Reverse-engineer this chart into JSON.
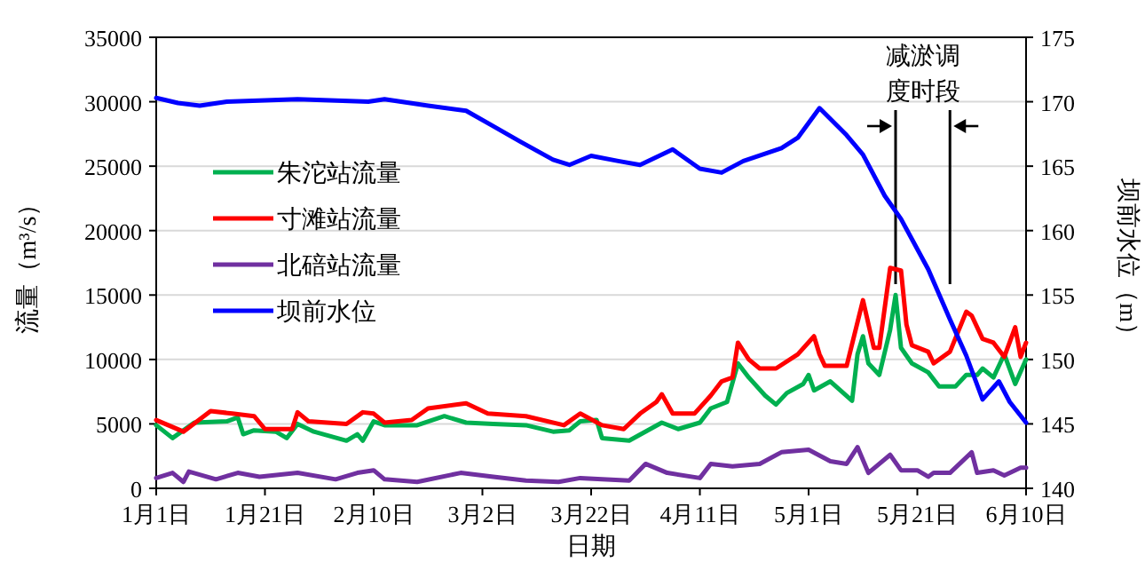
{
  "chart_data": {
    "type": "line",
    "xlabel": "日期",
    "ylabel": "流量（m³/s）",
    "y2label": "坝前水位（m）",
    "xlim": [
      "--01-01",
      "--06-10"
    ],
    "xticks": [
      {
        "value": "--01-01",
        "label": "1月1日"
      },
      {
        "value": "--01-21",
        "label": "1月21日"
      },
      {
        "value": "--02-10",
        "label": "2月10日"
      },
      {
        "value": "--03-02",
        "label": "3月2日"
      },
      {
        "value": "--03-22",
        "label": "3月22日"
      },
      {
        "value": "--04-11",
        "label": "4月11日"
      },
      {
        "value": "--05-01",
        "label": "5月1日"
      },
      {
        "value": "--05-21",
        "label": "5月21日"
      },
      {
        "value": "--06-10",
        "label": "6月10日"
      }
    ],
    "ylim": [
      0,
      35000
    ],
    "yticks": [
      0,
      5000,
      10000,
      15000,
      20000,
      25000,
      30000,
      35000
    ],
    "y2lim": [
      140,
      175
    ],
    "y2ticks": [
      140,
      145,
      150,
      155,
      160,
      165,
      170,
      175
    ],
    "grid": "y",
    "legend": "left",
    "line_style": "solid",
    "marker": "none",
    "ref_lines": [
      {
        "axis": "x",
        "value": "--05-17",
        "color": "#000000"
      },
      {
        "axis": "x",
        "value": "--05-27",
        "color": "#000000"
      }
    ],
    "annotations": [
      "减淤调度时段"
    ],
    "series": [
      {
        "name": "朱沱站流量",
        "color": "#00b050",
        "x": [
          "--01-01",
          "--01-04",
          "--01-08",
          "--01-14",
          "--01-16",
          "--01-17",
          "--01-19",
          "--01-23",
          "--01-25",
          "--01-27",
          "--01-30",
          "--02-05",
          "--02-07",
          "--02-08",
          "--02-10",
          "--02-12",
          "--02-18",
          "--02-23",
          "--02-27",
          "--03-04",
          "--03-10",
          "--03-15",
          "--03-18",
          "--03-20",
          "--03-23",
          "--03-24",
          "--03-29",
          "--04-04",
          "--04-07",
          "--04-11",
          "--04-13",
          "--04-16",
          "--04-18",
          "--04-20",
          "--04-23",
          "--04-25",
          "--04-27",
          "--04-30",
          "--05-01",
          "--05-02",
          "--05-05",
          "--05-09",
          "--05-10",
          "--05-11",
          "--05-12",
          "--05-14",
          "--05-16",
          "--05-17",
          "--05-18",
          "--05-20",
          "--05-23",
          "--05-25",
          "--05-28",
          "--05-30",
          "--06-01",
          "--06-02",
          "--06-04",
          "--06-06",
          "--06-08",
          "--06-10"
        ],
        "values": [
          4900,
          3900,
          5100,
          5200,
          5500,
          4200,
          4500,
          4400,
          3900,
          5000,
          4400,
          3700,
          4200,
          3700,
          5200,
          4900,
          4900,
          5600,
          5100,
          5000,
          4900,
          4400,
          4500,
          5200,
          5300,
          3900,
          3700,
          5100,
          4600,
          5100,
          6200,
          6700,
          9700,
          8600,
          7200,
          6500,
          7400,
          8100,
          8800,
          7600,
          8300,
          6800,
          10400,
          11800,
          9700,
          8800,
          12300,
          15000,
          10900,
          9700,
          9000,
          7900,
          7900,
          8800,
          8800,
          9300,
          8600,
          10400,
          8100,
          10000
        ]
      },
      {
        "name": "寸滩站流量",
        "color": "#ff0000",
        "x": [
          "--01-01",
          "--01-06",
          "--01-11",
          "--01-15",
          "--01-19",
          "--01-21",
          "--01-26",
          "--01-27",
          "--01-29",
          "--02-05",
          "--02-08",
          "--02-10",
          "--02-12",
          "--02-17",
          "--02-20",
          "--02-27",
          "--03-03",
          "--03-10",
          "--03-17",
          "--03-20",
          "--03-24",
          "--03-28",
          "--03-31",
          "--04-03",
          "--04-04",
          "--04-06",
          "--04-10",
          "--04-13",
          "--04-15",
          "--04-17",
          "--04-18",
          "--04-20",
          "--04-22",
          "--04-25",
          "--04-29",
          "--05-02",
          "--05-03",
          "--05-04",
          "--05-08",
          "--05-11",
          "--05-13",
          "--05-14",
          "--05-16",
          "--05-18",
          "--05-19",
          "--05-20",
          "--05-23",
          "--05-24",
          "--05-27",
          "--05-30",
          "--05-31",
          "--06-02",
          "--06-04",
          "--06-06",
          "--06-08",
          "--06-09",
          "--06-10"
        ],
        "values": [
          5300,
          4400,
          6000,
          5800,
          5600,
          4600,
          4600,
          5900,
          5200,
          5000,
          5900,
          5800,
          5100,
          5300,
          6200,
          6600,
          5800,
          5600,
          4900,
          5800,
          4900,
          4600,
          5800,
          6700,
          7300,
          5800,
          5800,
          7200,
          8300,
          8600,
          11300,
          10000,
          9300,
          9300,
          10400,
          11800,
          10400,
          9500,
          9500,
          14600,
          10900,
          10900,
          17100,
          16900,
          12700,
          11100,
          10600,
          9700,
          10600,
          13700,
          13400,
          11600,
          11300,
          10200,
          12500,
          10200,
          11300
        ]
      },
      {
        "name": "北碚站流量",
        "color": "#7030a0",
        "x": [
          "--01-01",
          "--01-04",
          "--01-06",
          "--01-07",
          "--01-12",
          "--01-16",
          "--01-20",
          "--01-27",
          "--02-03",
          "--02-07",
          "--02-10",
          "--02-12",
          "--02-18",
          "--02-26",
          "--03-04",
          "--03-10",
          "--03-16",
          "--03-20",
          "--03-24",
          "--03-29",
          "--04-01",
          "--04-05",
          "--04-11",
          "--04-13",
          "--04-17",
          "--04-22",
          "--04-26",
          "--05-01",
          "--05-05",
          "--05-08",
          "--05-10",
          "--05-12",
          "--05-16",
          "--05-18",
          "--05-21",
          "--05-23",
          "--05-24",
          "--05-27",
          "--05-31",
          "--06-01",
          "--06-04",
          "--06-06",
          "--06-09",
          "--06-10"
        ],
        "values": [
          800,
          1200,
          500,
          1300,
          700,
          1200,
          900,
          1200,
          700,
          1200,
          1400,
          700,
          500,
          1200,
          900,
          600,
          500,
          800,
          700,
          600,
          1900,
          1200,
          800,
          1900,
          1700,
          1900,
          2800,
          3000,
          2100,
          1900,
          3200,
          1200,
          2600,
          1400,
          1400,
          900,
          1200,
          1200,
          2800,
          1200,
          1400,
          1000,
          1600,
          1600
        ]
      },
      {
        "name": "坝前水位",
        "color": "#0000ff",
        "axis": "y2",
        "x": [
          "--01-01",
          "--01-05",
          "--01-09",
          "--01-14",
          "--01-27",
          "--02-09",
          "--02-12",
          "--02-20",
          "--02-27",
          "--03-04",
          "--03-09",
          "--03-15",
          "--03-18",
          "--03-22",
          "--03-27",
          "--03-31",
          "--04-06",
          "--04-11",
          "--04-15",
          "--04-19",
          "--04-26",
          "--04-29",
          "--05-03",
          "--05-08",
          "--05-11",
          "--05-15",
          "--05-18",
          "--05-23",
          "--05-27",
          "--05-30",
          "--06-02",
          "--06-05",
          "--06-07",
          "--06-10"
        ],
        "values": [
          170.3,
          169.9,
          169.7,
          170.0,
          170.2,
          170.0,
          170.2,
          169.7,
          169.3,
          168.1,
          166.9,
          165.5,
          165.1,
          165.8,
          165.4,
          165.1,
          166.3,
          164.8,
          164.5,
          165.4,
          166.4,
          167.2,
          169.5,
          167.4,
          165.9,
          162.7,
          160.9,
          157.0,
          153.1,
          150.3,
          146.9,
          148.3,
          146.7,
          145.1
        ]
      }
    ]
  }
}
